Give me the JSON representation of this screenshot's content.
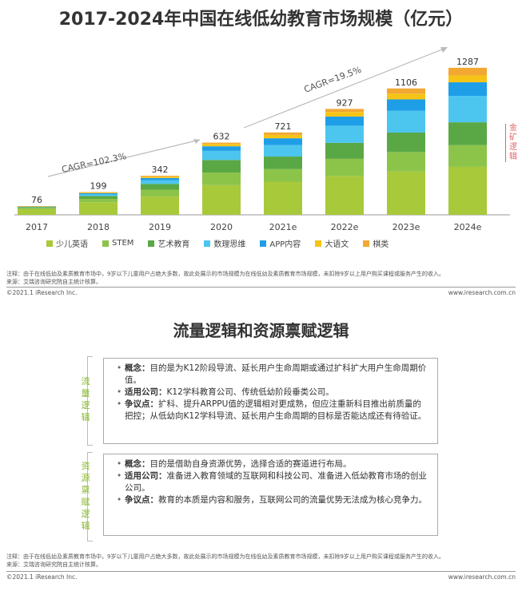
{
  "slide1": {
    "title": "2017-2024年中国在线低幼教育市场规模（亿元）",
    "side_label": [
      "金",
      "矿",
      "逻",
      "辑"
    ],
    "note": "注释：由于在线低幼及素质教育市场中，9岁以下儿童用户占绝大多数，故此处展示的市场规模为在线低幼及素质教育市场规模，未扣除9岁以上用户购买课程或服务产生的收入。",
    "source": "来源：艾瑞咨询研究院自主统计核算。",
    "copyright": "©2021.1 iResearch Inc.",
    "website": "www.iresearch.com.cn"
  },
  "chart_data": {
    "type": "bar",
    "stacked": true,
    "categories": [
      "2017",
      "2018",
      "2019",
      "2020",
      "2021e",
      "2022e",
      "2023e",
      "2024e"
    ],
    "totals": [
      76,
      199,
      342,
      632,
      721,
      927,
      1106,
      1287
    ],
    "series": [
      {
        "name": "少儿英语",
        "color": "#a8c93a",
        "values": [
          50,
          110,
          160,
          260,
          290,
          340,
          380,
          420
        ]
      },
      {
        "name": "STEM",
        "color": "#8cc44a",
        "values": [
          10,
          30,
          60,
          110,
          110,
          150,
          170,
          190
        ]
      },
      {
        "name": "艺术教育",
        "color": "#5aa845",
        "values": [
          8,
          25,
          50,
          110,
          110,
          140,
          170,
          200
        ]
      },
      {
        "name": "数理思维",
        "color": "#4cc6ee",
        "values": [
          4,
          14,
          32,
          80,
          100,
          150,
          190,
          230
        ]
      },
      {
        "name": "APP内容",
        "color": "#1f9ee8",
        "values": [
          2,
          10,
          20,
          40,
          60,
          80,
          100,
          120
        ]
      },
      {
        "name": "大语文",
        "color": "#f6c416",
        "values": [
          1,
          6,
          12,
          20,
          30,
          40,
          50,
          60
        ]
      },
      {
        "name": "棋类",
        "color": "#f2a833",
        "values": [
          1,
          4,
          8,
          12,
          21,
          27,
          46,
          67
        ]
      }
    ],
    "annotations": [
      "CAGR=102.3%",
      "CAGR=19.5%"
    ],
    "ylim": [
      0,
      1300
    ],
    "grid": false,
    "legend": "bottom"
  },
  "slide2": {
    "title": "流量逻辑和资源禀赋逻辑",
    "traffic": {
      "label": [
        "流",
        "量",
        "逻",
        "辑"
      ],
      "items": [
        {
          "k": "概念：",
          "v": "目的是为K12阶段导流、延长用户生命周期或通过扩科扩大用户生命周期价值。"
        },
        {
          "k": "适用公司：",
          "v": "K12学科教育公司、传统低幼阶段垂类公司。"
        },
        {
          "k": "争议点：",
          "v": "扩科、提升ARPPU值的逻辑相对更成熟，但应注重新科目推出前质量的把控；从低幼向K12学科导流、延长用户生命周期的目标是否能达成还有待验证。"
        }
      ]
    },
    "resource": {
      "label": [
        "资",
        "源",
        "禀",
        "赋",
        "逻",
        "辑"
      ],
      "items": [
        {
          "k": "概念：",
          "v": "目的是借助自身资源优势，选择合适的赛道进行布局。"
        },
        {
          "k": "适用公司：",
          "v": "准备进入教育领域的互联网和科技公司、准备进入低幼教育市场的创业公司。"
        },
        {
          "k": "争议点：",
          "v": "教育的本质是内容和服务，互联网公司的流量优势无法成为核心竞争力。"
        }
      ]
    },
    "note": "注释：由于在线低幼及素质教育市场中，9岁以下儿童用户占绝大多数，故此处展示的市场规模为在线低幼及素质教育市场规模，未扣除9岁以上用户购买课程或服务产生的收入。",
    "source": "来源：艾瑞咨询研究院自主统计核算。",
    "copyright": "©2021.1 iResearch Inc.",
    "website": "www.iresearch.com.cn"
  }
}
